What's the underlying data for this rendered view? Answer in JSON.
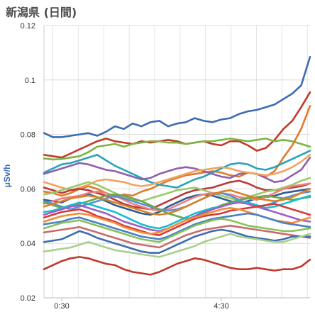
{
  "chart_data": {
    "type": "line",
    "title": "新潟県 (日間)",
    "xlabel": "",
    "ylabel": "μSv/h",
    "ylim": [
      0.02,
      0.12
    ],
    "yticks": [
      "0.02",
      "0.04",
      "0.06",
      "0.08",
      "0.1",
      "0.12"
    ],
    "xlim": [
      0,
      30
    ],
    "xticks": [
      {
        "x": 2,
        "label": "0:30"
      },
      {
        "x": 20,
        "label": "4:30"
      }
    ],
    "grid": true,
    "legend": "none",
    "series": [
      {
        "color": "#3d6cb1",
        "values": [
          0.0805,
          0.079,
          0.079,
          0.0795,
          0.08,
          0.0805,
          0.0795,
          0.081,
          0.083,
          0.082,
          0.084,
          0.083,
          0.0845,
          0.085,
          0.083,
          0.084,
          0.0845,
          0.086,
          0.085,
          0.0845,
          0.0855,
          0.086,
          0.0875,
          0.0885,
          0.089,
          0.09,
          0.091,
          0.093,
          0.095,
          0.098,
          0.1085
        ]
      },
      {
        "color": "#c0392b",
        "values": [
          0.0725,
          0.072,
          0.0715,
          0.073,
          0.0745,
          0.076,
          0.0775,
          0.0785,
          0.0775,
          0.077,
          0.0765,
          0.0775,
          0.077,
          0.0775,
          0.078,
          0.0775,
          0.0765,
          0.077,
          0.0775,
          0.0765,
          0.076,
          0.0775,
          0.0775,
          0.076,
          0.074,
          0.075,
          0.078,
          0.082,
          0.085,
          0.09,
          0.0955
        ]
      },
      {
        "color": "#7db443",
        "values": [
          0.0712,
          0.0708,
          0.071,
          0.0715,
          0.072,
          0.0735,
          0.0755,
          0.076,
          0.0765,
          0.0755,
          0.0765,
          0.077,
          0.0775,
          0.0775,
          0.077,
          0.077,
          0.0765,
          0.077,
          0.0775,
          0.0775,
          0.078,
          0.0785,
          0.078,
          0.0775,
          0.078,
          0.0785,
          0.0775,
          0.078,
          0.0775,
          0.0765,
          0.0755
        ]
      },
      {
        "color": "#e07a2f",
        "values": [
          0.059,
          0.0585,
          0.0575,
          0.0585,
          0.06,
          0.061,
          0.06,
          0.0585,
          0.057,
          0.058,
          0.0575,
          0.059,
          0.06,
          0.0615,
          0.063,
          0.064,
          0.065,
          0.0655,
          0.066,
          0.0665,
          0.066,
          0.065,
          0.0645,
          0.066,
          0.0655,
          0.0645,
          0.0665,
          0.0715,
          0.076,
          0.082,
          0.0905
        ]
      },
      {
        "color": "#2aa3b8",
        "values": [
          0.066,
          0.0675,
          0.069,
          0.0695,
          0.0705,
          0.0715,
          0.0725,
          0.0705,
          0.0685,
          0.067,
          0.0655,
          0.064,
          0.0625,
          0.0615,
          0.061,
          0.0605,
          0.062,
          0.0635,
          0.0645,
          0.066,
          0.0675,
          0.069,
          0.0695,
          0.069,
          0.0675,
          0.067,
          0.068,
          0.0695,
          0.071,
          0.0725,
          0.074
        ]
      },
      {
        "color": "#8e5fb0",
        "values": [
          0.0655,
          0.0665,
          0.0675,
          0.0685,
          0.0695,
          0.069,
          0.068,
          0.067,
          0.0665,
          0.0655,
          0.0645,
          0.0635,
          0.064,
          0.0655,
          0.0665,
          0.0675,
          0.068,
          0.0675,
          0.0665,
          0.0655,
          0.0645,
          0.064,
          0.0655,
          0.066,
          0.0655,
          0.064,
          0.0625,
          0.063,
          0.065,
          0.067,
          0.0715
        ]
      },
      {
        "color": "#f0a35e",
        "values": [
          0.0625,
          0.0615,
          0.0605,
          0.0595,
          0.0605,
          0.0615,
          0.063,
          0.0635,
          0.063,
          0.0625,
          0.0615,
          0.061,
          0.0615,
          0.0625,
          0.0635,
          0.0645,
          0.0655,
          0.0665,
          0.067,
          0.0675,
          0.068,
          0.0675,
          0.0665,
          0.066,
          0.0655,
          0.065,
          0.0655,
          0.0665,
          0.068,
          0.07,
          0.0725
        ]
      },
      {
        "color": "#2e5e94",
        "values": [
          0.056,
          0.0555,
          0.055,
          0.0565,
          0.0575,
          0.058,
          0.057,
          0.0555,
          0.054,
          0.053,
          0.052,
          0.051,
          0.0505,
          0.0515,
          0.0535,
          0.055,
          0.0565,
          0.0575,
          0.058,
          0.0575,
          0.0565,
          0.0555,
          0.055,
          0.0555,
          0.0565,
          0.057,
          0.0575,
          0.0585,
          0.059,
          0.0595,
          0.06
        ]
      },
      {
        "color": "#b83b3b",
        "values": [
          0.0605,
          0.0595,
          0.0585,
          0.0595,
          0.06,
          0.0595,
          0.0585,
          0.0575,
          0.056,
          0.0545,
          0.0535,
          0.053,
          0.0525,
          0.054,
          0.0555,
          0.057,
          0.0585,
          0.0595,
          0.06,
          0.0605,
          0.0615,
          0.0625,
          0.063,
          0.062,
          0.0605,
          0.0595,
          0.0595,
          0.06,
          0.0605,
          0.061,
          0.062
        ]
      },
      {
        "color": "#9cc96b",
        "values": [
          0.058,
          0.0585,
          0.0595,
          0.0605,
          0.0615,
          0.0625,
          0.0615,
          0.06,
          0.0585,
          0.057,
          0.056,
          0.0555,
          0.0565,
          0.0575,
          0.0585,
          0.0595,
          0.06,
          0.0605,
          0.0595,
          0.0585,
          0.0575,
          0.0565,
          0.056,
          0.057,
          0.058,
          0.059,
          0.0595,
          0.0605,
          0.0615,
          0.063,
          0.064
        ]
      },
      {
        "color": "#f08080",
        "values": [
          0.0545,
          0.0555,
          0.0565,
          0.057,
          0.0575,
          0.0585,
          0.059,
          0.0585,
          0.0575,
          0.056,
          0.0545,
          0.0535,
          0.0525,
          0.052,
          0.0525,
          0.054,
          0.0555,
          0.057,
          0.058,
          0.0585,
          0.0585,
          0.058,
          0.057,
          0.0565,
          0.056,
          0.057,
          0.0585,
          0.06,
          0.061,
          0.0615,
          0.062
        ]
      },
      {
        "color": "#5a8fd6",
        "values": [
          0.0555,
          0.0545,
          0.0535,
          0.0525,
          0.0535,
          0.0545,
          0.0555,
          0.0565,
          0.0575,
          0.0565,
          0.0555,
          0.0545,
          0.0535,
          0.0525,
          0.052,
          0.0525,
          0.0535,
          0.055,
          0.0565,
          0.058,
          0.0585,
          0.0575,
          0.056,
          0.0545,
          0.0535,
          0.054,
          0.055,
          0.0565,
          0.0575,
          0.0585,
          0.059
        ]
      },
      {
        "color": "#6aa84f",
        "values": [
          0.055,
          0.054,
          0.053,
          0.0535,
          0.0545,
          0.0555,
          0.0565,
          0.0575,
          0.058,
          0.0575,
          0.0565,
          0.0555,
          0.054,
          0.0525,
          0.051,
          0.05,
          0.049,
          0.0495,
          0.051,
          0.0525,
          0.054,
          0.055,
          0.056,
          0.0565,
          0.057,
          0.0575,
          0.057,
          0.0565,
          0.056,
          0.0565,
          0.057
        ]
      },
      {
        "color": "#d9822b",
        "values": [
          0.0535,
          0.0545,
          0.0555,
          0.0565,
          0.057,
          0.0575,
          0.057,
          0.056,
          0.055,
          0.054,
          0.053,
          0.052,
          0.051,
          0.0505,
          0.051,
          0.052,
          0.0535,
          0.055,
          0.0565,
          0.058,
          0.059,
          0.0595,
          0.0585,
          0.0575,
          0.0565,
          0.056,
          0.0555,
          0.056,
          0.057,
          0.0585,
          0.06
        ]
      },
      {
        "color": "#17becf",
        "values": [
          0.0515,
          0.052,
          0.053,
          0.054,
          0.055,
          0.0545,
          0.0535,
          0.0525,
          0.0515,
          0.05,
          0.0485,
          0.047,
          0.046,
          0.0455,
          0.0465,
          0.048,
          0.0495,
          0.051,
          0.052,
          0.053,
          0.0535,
          0.0545,
          0.0555,
          0.055,
          0.054,
          0.053,
          0.0535,
          0.0545,
          0.0555,
          0.0565,
          0.0575
        ]
      },
      {
        "color": "#a05fc4",
        "values": [
          0.0505,
          0.0515,
          0.0525,
          0.0535,
          0.054,
          0.053,
          0.052,
          0.051,
          0.0495,
          0.048,
          0.047,
          0.046,
          0.045,
          0.0445,
          0.0455,
          0.047,
          0.0485,
          0.05,
          0.0515,
          0.0525,
          0.0535,
          0.0545,
          0.055,
          0.0545,
          0.0535,
          0.0525,
          0.0515,
          0.0505,
          0.0495,
          0.0485,
          0.048
        ]
      },
      {
        "color": "#d43c3c",
        "values": [
          0.0495,
          0.0505,
          0.0515,
          0.052,
          0.0525,
          0.0515,
          0.05,
          0.049,
          0.048,
          0.0465,
          0.0455,
          0.0445,
          0.0435,
          0.043,
          0.0445,
          0.046,
          0.0475,
          0.049,
          0.05,
          0.0505,
          0.051,
          0.052,
          0.0525,
          0.053,
          0.0535,
          0.054,
          0.0545,
          0.0535,
          0.0525,
          0.0515,
          0.0505
        ]
      },
      {
        "color": "#ef8f3a",
        "values": [
          0.048,
          0.049,
          0.05,
          0.0505,
          0.051,
          0.0505,
          0.0495,
          0.0485,
          0.0475,
          0.046,
          0.045,
          0.044,
          0.0435,
          0.044,
          0.0455,
          0.047,
          0.0485,
          0.0495,
          0.0505,
          0.0515,
          0.0525,
          0.053,
          0.0525,
          0.0515,
          0.0505,
          0.0495,
          0.0485,
          0.048,
          0.0475,
          0.0485,
          0.0495
        ]
      },
      {
        "color": "#4b7fc4",
        "values": [
          0.047,
          0.0475,
          0.048,
          0.049,
          0.0495,
          0.0485,
          0.0475,
          0.0465,
          0.0455,
          0.0445,
          0.0435,
          0.0425,
          0.042,
          0.0415,
          0.0425,
          0.044,
          0.0455,
          0.047,
          0.048,
          0.049,
          0.0495,
          0.05,
          0.0505,
          0.051,
          0.0505,
          0.0495,
          0.0485,
          0.0475,
          0.047,
          0.0465,
          0.046
        ]
      },
      {
        "color": "#88c25c",
        "values": [
          0.0455,
          0.0465,
          0.0475,
          0.048,
          0.0485,
          0.0475,
          0.0465,
          0.0455,
          0.0445,
          0.0435,
          0.0425,
          0.0415,
          0.041,
          0.0405,
          0.042,
          0.0435,
          0.045,
          0.0465,
          0.0475,
          0.0485,
          0.049,
          0.0485,
          0.0475,
          0.0465,
          0.046,
          0.0455,
          0.045,
          0.0445,
          0.0445,
          0.045,
          0.0455
        ]
      },
      {
        "color": "#c96b6b",
        "values": [
          0.044,
          0.0445,
          0.045,
          0.0455,
          0.046,
          0.045,
          0.044,
          0.043,
          0.042,
          0.041,
          0.04,
          0.0395,
          0.039,
          0.0385,
          0.04,
          0.0415,
          0.043,
          0.044,
          0.045,
          0.0455,
          0.046,
          0.0465,
          0.046,
          0.0455,
          0.045,
          0.0445,
          0.044,
          0.0435,
          0.043,
          0.0425,
          0.042
        ]
      },
      {
        "color": "#3d6cb1",
        "values": [
          0.0405,
          0.041,
          0.0415,
          0.043,
          0.0445,
          0.0435,
          0.042,
          0.041,
          0.04,
          0.039,
          0.038,
          0.037,
          0.0365,
          0.0365,
          0.038,
          0.0395,
          0.041,
          0.0425,
          0.0435,
          0.0445,
          0.045,
          0.0445,
          0.0435,
          0.0425,
          0.042,
          0.0415,
          0.041,
          0.0415,
          0.0425,
          0.0425,
          0.0425
        ]
      },
      {
        "color": "#a8d08d",
        "values": [
          0.037,
          0.0375,
          0.038,
          0.0385,
          0.0395,
          0.0405,
          0.0395,
          0.0385,
          0.0375,
          0.037,
          0.0365,
          0.036,
          0.0355,
          0.035,
          0.036,
          0.037,
          0.038,
          0.039,
          0.0405,
          0.0415,
          0.0425,
          0.0435,
          0.0425,
          0.042,
          0.0415,
          0.041,
          0.0405,
          0.0405,
          0.0415,
          0.0425,
          0.0435
        ]
      },
      {
        "color": "#c0392b",
        "values": [
          0.0305,
          0.032,
          0.0335,
          0.0345,
          0.035,
          0.0345,
          0.0335,
          0.0325,
          0.032,
          0.0305,
          0.0295,
          0.029,
          0.0285,
          0.0295,
          0.031,
          0.0325,
          0.0335,
          0.0345,
          0.034,
          0.033,
          0.032,
          0.031,
          0.0305,
          0.0305,
          0.031,
          0.0305,
          0.03,
          0.0305,
          0.0305,
          0.0315,
          0.034
        ]
      }
    ]
  }
}
